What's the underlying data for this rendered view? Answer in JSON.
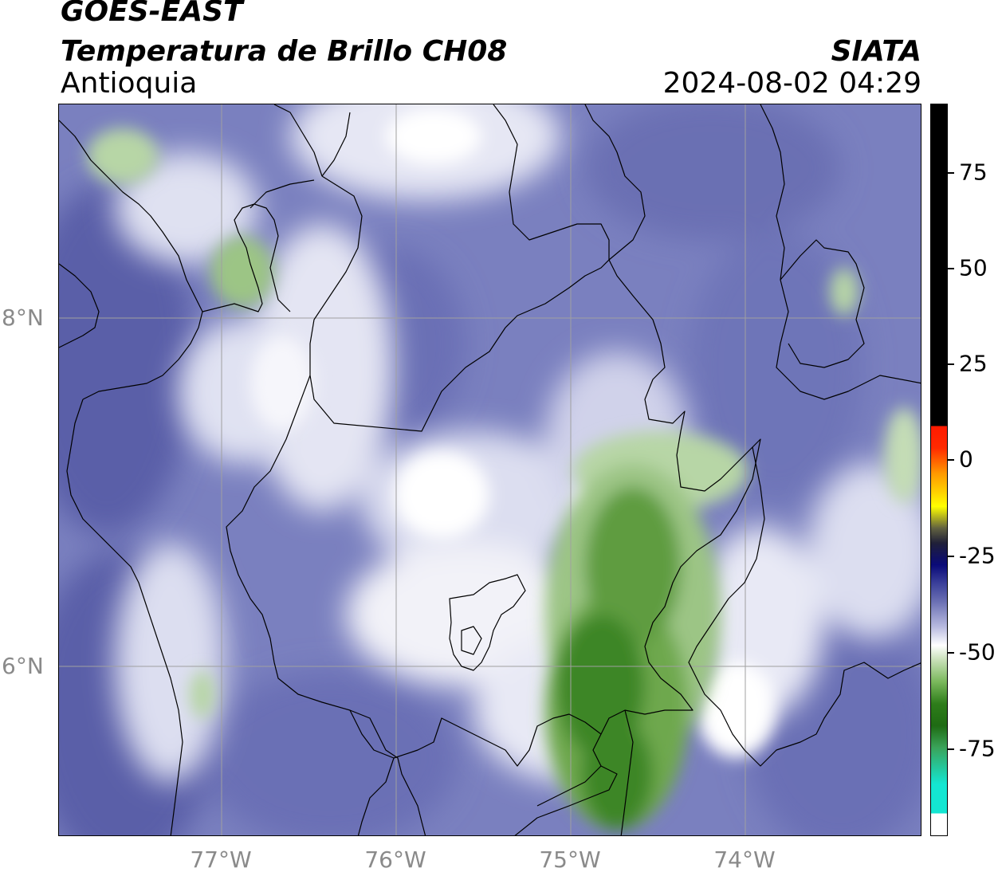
{
  "header": {
    "satellite": "GOES-EAST",
    "product": "Temperatura de Brillo CH08",
    "region": "Antioquia",
    "brand": "SIATA",
    "datetime": "2024-08-02 04:29"
  },
  "axes": {
    "lat_labels": [
      "8°N",
      "6°N"
    ],
    "lon_labels": [
      "77°W",
      "76°W",
      "75°W",
      "74°W"
    ]
  },
  "colorbar": {
    "ticks": [
      "75",
      "50",
      "25",
      "0",
      "-25",
      "-50",
      "-75"
    ],
    "colors": {
      "black_band": "#000000",
      "red": "#ff1a00",
      "orange": "#ff9900",
      "yellow": "#ffff00",
      "navy": "#0a0a78",
      "purple_blue": "#5a5fb0",
      "white": "#ffffff",
      "green": "#2e7d1a",
      "cyan": "#14e6d2"
    }
  },
  "map": {
    "colors": {
      "background_blue": "#6e74b8",
      "light_lavender": "#c6c8e6",
      "white_cloud": "#f7f7fb",
      "pale_green": "#b7d6a6",
      "mid_green": "#6ea84e",
      "deep_green": "#2f7d20",
      "border_line": "#000000",
      "grid_line": "#a0a0a0"
    }
  }
}
